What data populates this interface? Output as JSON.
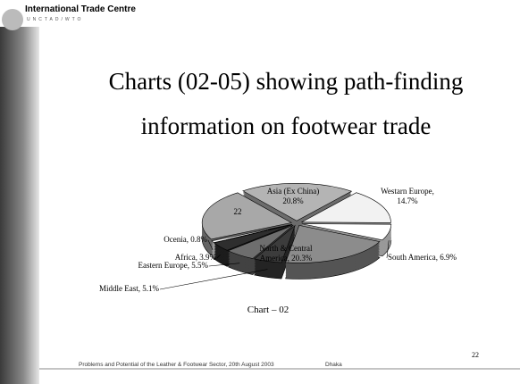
{
  "header": {
    "org": "International Trade Centre",
    "sub": "UNCTAD/WTO"
  },
  "slide": {
    "title": [
      "Charts (02-05) showing path-finding",
      "information on footwear trade"
    ],
    "footer": "Problems and Potential of the Leather & Footwear Sector, 20th August 2003",
    "place": "Dhaka",
    "page_number": "22"
  },
  "chart_data": {
    "type": "pie",
    "title": "Chart – 02",
    "categories": [
      "Asia (Ex China)",
      "Westarn Europe,",
      "South America,",
      "North & Central America,",
      "Middle East,",
      "Eastern Europe,",
      "Africa,",
      "Ocenia,",
      null
    ],
    "values": [
      20.8,
      14.7,
      6.9,
      20.3,
      5.1,
      5.5,
      3.9,
      0.8,
      22
    ],
    "value_labels": [
      "20.8%",
      "14.7%",
      "6.9%",
      "20.3%",
      "5.1%",
      "5.5%",
      "3.9%",
      "0.8%",
      "22"
    ],
    "colors": [
      "#b4b4b4",
      "#f2f2f2",
      "#ffffff",
      "#8c8c8c",
      "#3c3c3c",
      "#6e6e6e",
      "#2e2e2e",
      "#ffffff",
      "#a8a8a8"
    ]
  }
}
